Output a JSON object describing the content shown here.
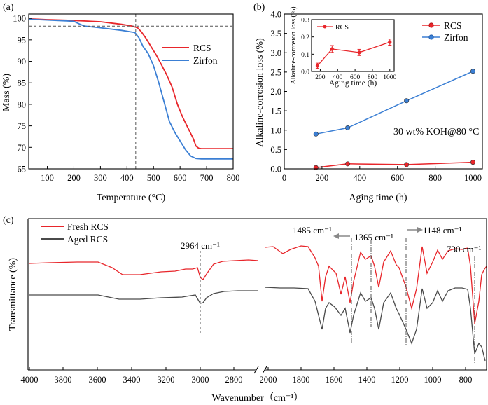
{
  "chart_data": [
    {
      "panel": "(a)",
      "type": "line",
      "xlabel": "Temperature (°C)",
      "ylabel": "Mass (%)",
      "xlim": [
        30,
        800
      ],
      "ylim": [
        65,
        101
      ],
      "xticks": [
        100,
        200,
        300,
        400,
        500,
        600,
        700,
        800
      ],
      "yticks": [
        65,
        70,
        75,
        80,
        85,
        90,
        95,
        100
      ],
      "ref_vline_x": 433,
      "ref_hline_y": 98.2,
      "legend_position": "center-right",
      "series": [
        {
          "name": "RCS",
          "color": "#e8262b",
          "x": [
            30,
            100,
            200,
            300,
            380,
            420,
            440,
            455,
            470,
            490,
            510,
            530,
            550,
            570,
            590,
            610,
            630,
            650,
            660,
            670,
            680,
            700,
            750,
            800
          ],
          "y": [
            99.9,
            99.7,
            99.5,
            99.2,
            98.6,
            98.2,
            97.8,
            96.8,
            95.5,
            93.5,
            91.5,
            89.2,
            86.8,
            84.0,
            80.0,
            77.0,
            74.5,
            72.0,
            70.3,
            69.8,
            69.7,
            69.7,
            69.7,
            69.7
          ]
        },
        {
          "name": "Zirfon",
          "color": "#3b7fd4",
          "x": [
            30,
            100,
            200,
            220,
            240,
            300,
            380,
            430,
            445,
            460,
            480,
            500,
            520,
            540,
            560,
            580,
            600,
            620,
            640,
            660,
            680,
            700,
            750,
            800
          ],
          "y": [
            99.8,
            99.6,
            99.3,
            98.7,
            98.2,
            97.8,
            97.2,
            96.7,
            95.5,
            93.5,
            91.8,
            89.0,
            85.0,
            80.5,
            76.0,
            73.5,
            71.5,
            69.5,
            68.0,
            67.4,
            67.3,
            67.3,
            67.3,
            67.3
          ]
        }
      ]
    },
    {
      "panel": "(b)",
      "type": "line",
      "xlabel": "Aging time (h)",
      "ylabel": "Alkaline-corrosion loss (%)",
      "xlim": [
        0,
        1050
      ],
      "ylim": [
        0,
        4.0
      ],
      "xticks": [
        0,
        200,
        400,
        600,
        800,
        1000
      ],
      "yticks": [
        0,
        0.5,
        1.0,
        1.5,
        2.0,
        2.5,
        3.0,
        3.5,
        4.0
      ],
      "annotation": "30 wt% KOH@80 °C",
      "legend_position": "top-right",
      "series": [
        {
          "name": "RCS",
          "color": "#e8262b",
          "x": [
            168,
            336,
            648,
            1000
          ],
          "y": [
            0.033,
            0.13,
            0.11,
            0.17
          ]
        },
        {
          "name": "Zirfon",
          "color": "#3b7fd4",
          "x": [
            168,
            336,
            648,
            1000
          ],
          "y": [
            0.9,
            1.06,
            1.76,
            2.52
          ]
        }
      ],
      "inset": {
        "xlabel": "Aging time (h)",
        "ylabel": "Alkaline-corrosion loss (%)",
        "xlim": [
          100,
          1050
        ],
        "ylim": [
          0,
          0.3
        ],
        "xticks": [
          200,
          400,
          600,
          800,
          1000
        ],
        "yticks": [
          0.0,
          0.1,
          0.2,
          0.3
        ],
        "legend": "RCS",
        "x": [
          168,
          336,
          648,
          1000
        ],
        "y": [
          0.033,
          0.13,
          0.11,
          0.17
        ],
        "err": [
          0.015,
          0.02,
          0.018,
          0.018
        ]
      }
    },
    {
      "panel": "(c)",
      "type": "line",
      "xlabel": "Wavenumber（cm⁻¹）",
      "ylabel": "Transmittance (%)",
      "xticks": [
        4000,
        3800,
        3600,
        3400,
        3200,
        3000,
        2800,
        2000,
        1800,
        1600,
        1400,
        1200,
        1000,
        800
      ],
      "axis_break": [
        2700,
        2050
      ],
      "series": [
        {
          "name": "Fresh RCS",
          "color": "#e8262b"
        },
        {
          "name": "Aged RCS",
          "color": "#4a4a4a"
        }
      ],
      "peaks": [
        {
          "label": "2964 cm⁻¹",
          "x": 2964
        },
        {
          "label": "1485 cm⁻¹",
          "x": 1485
        },
        {
          "label": "1365 cm⁻¹",
          "x": 1365
        },
        {
          "label": "1148 cm⁻¹",
          "x": 1148
        },
        {
          "label": "730 cm⁻¹",
          "x": 730
        }
      ]
    }
  ]
}
